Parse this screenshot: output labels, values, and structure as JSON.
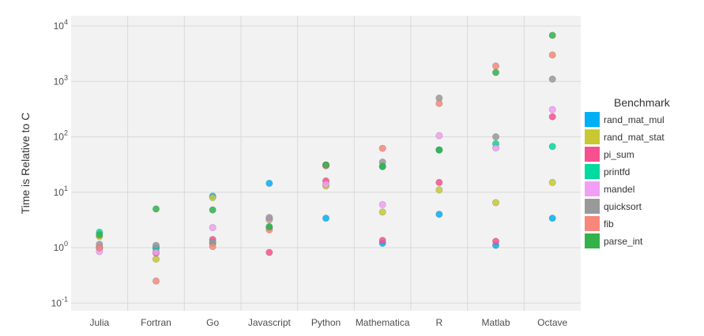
{
  "chart_data": {
    "type": "scatter",
    "title": "",
    "xlabel": "",
    "ylabel": "Time is Relative to C",
    "yscale": "log10",
    "ylim": [
      0.07,
      12000
    ],
    "yticks": [
      {
        "value": 0.1,
        "base": "10",
        "exp": "-1"
      },
      {
        "value": 1,
        "base": "10",
        "exp": "0"
      },
      {
        "value": 10,
        "base": "10",
        "exp": "1"
      },
      {
        "value": 100,
        "base": "10",
        "exp": "2"
      },
      {
        "value": 1000,
        "base": "10",
        "exp": "3"
      },
      {
        "value": 10000,
        "base": "10",
        "exp": "4"
      }
    ],
    "grid": true,
    "legend_position": "right",
    "legend_title": "Benchmark",
    "categories": [
      "Julia",
      "Fortran",
      "Go",
      "Javascript",
      "Python",
      "Mathematica",
      "R",
      "Matlab",
      "Octave"
    ],
    "series": [
      {
        "name": "rand_mat_mul",
        "color": "#00b0f6",
        "values": [
          1.0,
          1.0,
          8.5,
          14.5,
          3.4,
          1.2,
          4.0,
          1.1,
          3.4
        ]
      },
      {
        "name": "rand_mat_stat",
        "color": "#c8c832",
        "values": [
          1.6,
          0.62,
          8.0,
          3.2,
          13.0,
          4.4,
          11.0,
          6.5,
          15.0
        ]
      },
      {
        "name": "pi_sum",
        "color": "#f8508f",
        "values": [
          1.0,
          0.8,
          1.4,
          0.82,
          16.0,
          1.35,
          15.0,
          1.3,
          230.0
        ]
      },
      {
        "name": "printfd",
        "color": "#00d9a0",
        "values": [
          1.9,
          0.95,
          1.2,
          2.3,
          31.0,
          29.0,
          58.0,
          75.0,
          67.0
        ]
      },
      {
        "name": "mandel",
        "color": "#f29ef5",
        "values": [
          0.85,
          0.82,
          2.3,
          3.3,
          14.0,
          6.0,
          105.0,
          63.0,
          310.0
        ]
      },
      {
        "name": "quicksort",
        "color": "#999999",
        "values": [
          1.15,
          1.1,
          1.25,
          3.5,
          31.0,
          35.0,
          500.0,
          100.0,
          1100.0
        ]
      },
      {
        "name": "fib",
        "color": "#f8877b",
        "values": [
          1.0,
          0.25,
          1.05,
          2.1,
          30.0,
          62.0,
          400.0,
          1900.0,
          3000.0
        ]
      },
      {
        "name": "parse_int",
        "color": "#33b249",
        "values": [
          1.7,
          5.0,
          4.8,
          2.4,
          31.0,
          29.5,
          58.0,
          1450.0,
          6800.0
        ]
      }
    ]
  }
}
